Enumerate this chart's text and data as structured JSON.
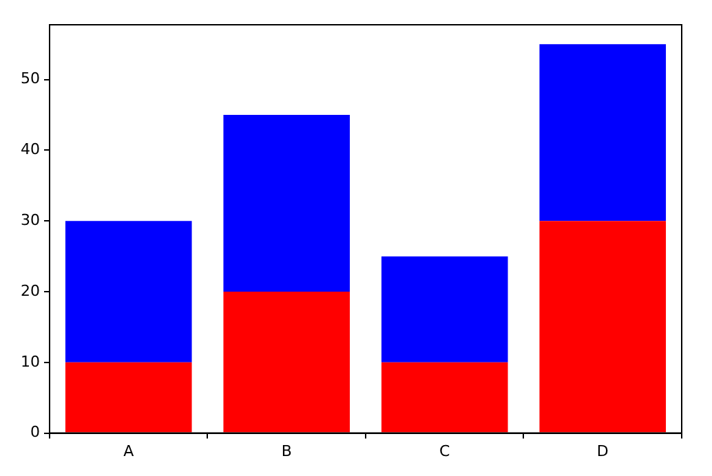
{
  "chart_data": {
    "type": "bar",
    "stacked": true,
    "categories": [
      "A",
      "B",
      "C",
      "D"
    ],
    "series": [
      {
        "color": "#ff0000",
        "values": [
          10,
          20,
          10,
          30
        ]
      },
      {
        "color": "#0000ff",
        "values": [
          20,
          25,
          15,
          25
        ]
      }
    ],
    "ylim": [
      0,
      57.75
    ],
    "yticks": [
      0,
      10,
      20,
      30,
      40,
      50
    ],
    "grid": false,
    "legend": false
  }
}
